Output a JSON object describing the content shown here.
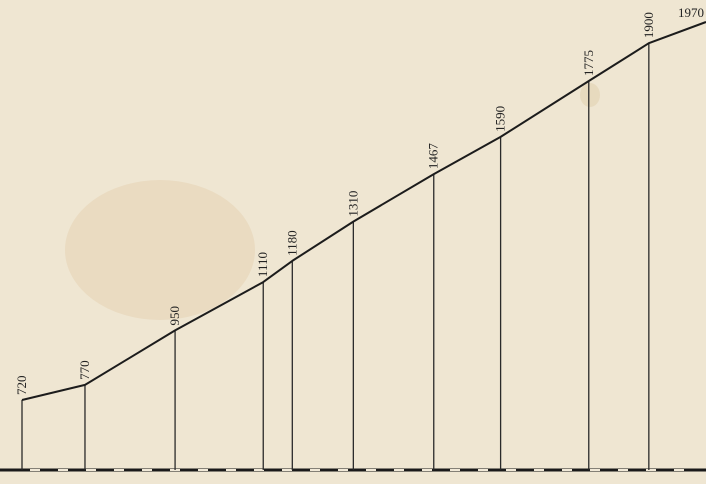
{
  "chart_data": {
    "type": "line",
    "x_unit": "relative distance",
    "points": [
      {
        "x": 0,
        "label": "720",
        "value": 720
      },
      {
        "x": 65,
        "label": "770",
        "value": 770
      },
      {
        "x": 158,
        "label": "950",
        "value": 950
      },
      {
        "x": 249,
        "label": "1110",
        "value": 1110
      },
      {
        "x": 279,
        "label": "1180",
        "value": 1180
      },
      {
        "x": 342,
        "label": "1310",
        "value": 1310
      },
      {
        "x": 425,
        "label": "1467",
        "value": 1467
      },
      {
        "x": 494,
        "label": "1590",
        "value": 1590
      },
      {
        "x": 585,
        "label": "1775",
        "value": 1775
      },
      {
        "x": 647,
        "label": "1900",
        "value": 1900
      },
      {
        "x": 706,
        "label": "1970",
        "value": 1970
      }
    ],
    "label_orientation": "vertical",
    "last_label_orientation": "horizontal",
    "grid": false,
    "title": "",
    "xlabel": "",
    "ylabel": ""
  },
  "colors": {
    "paper": "#efe6d2",
    "ink": "#1c1c1c"
  }
}
